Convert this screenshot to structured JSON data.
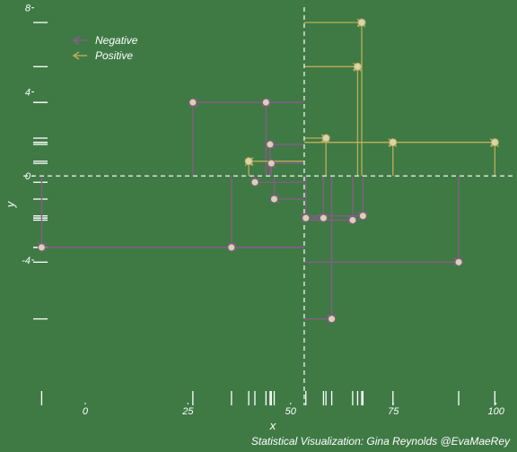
{
  "caption": "Statistical Visualization: Gina Reynolds @EvaMaeRey",
  "colors": {
    "background": "#3f7a45",
    "negative": "#8a5a8c",
    "positive": "#bcae58",
    "reference_line": "#e8e8e8",
    "rug": "#ffffff",
    "point": "#d8d3b0"
  },
  "chart_data": {
    "type": "scatter",
    "xlabel": "x",
    "ylabel": "y",
    "xlim": [
      -12,
      104
    ],
    "ylim": [
      -10.4,
      8.2
    ],
    "x_ticks": [
      0,
      25,
      50,
      75,
      100
    ],
    "y_ticks": [
      -4,
      0,
      4,
      8
    ],
    "x_mean": 53.3,
    "y_mean": 0,
    "grid": false,
    "legend_position": "top-left",
    "series": [
      {
        "name": "Negative",
        "points": [
          {
            "x": -10.6,
            "y": -3.4
          },
          {
            "x": 26.2,
            "y": 3.5
          },
          {
            "x": 35.6,
            "y": -3.4
          },
          {
            "x": 41.3,
            "y": -0.3
          },
          {
            "x": 44.0,
            "y": 3.5
          },
          {
            "x": 45.0,
            "y": 1.5
          },
          {
            "x": 45.3,
            "y": 0.6
          },
          {
            "x": 46.0,
            "y": -1.1
          },
          {
            "x": 53.7,
            "y": -2.0
          },
          {
            "x": 58.0,
            "y": -2.0
          },
          {
            "x": 60.0,
            "y": -6.8
          },
          {
            "x": 65.1,
            "y": -2.1
          },
          {
            "x": 67.6,
            "y": -1.9
          },
          {
            "x": 90.9,
            "y": -4.1
          }
        ]
      },
      {
        "name": "Positive",
        "points": [
          {
            "x": 39.8,
            "y": 0.7
          },
          {
            "x": 58.6,
            "y": 1.8
          },
          {
            "x": 66.3,
            "y": 5.2
          },
          {
            "x": 67.3,
            "y": 7.3
          },
          {
            "x": 74.9,
            "y": 1.6
          },
          {
            "x": 99.7,
            "y": 1.6
          }
        ]
      }
    ],
    "legend": [
      "Negative",
      "Positive"
    ]
  }
}
